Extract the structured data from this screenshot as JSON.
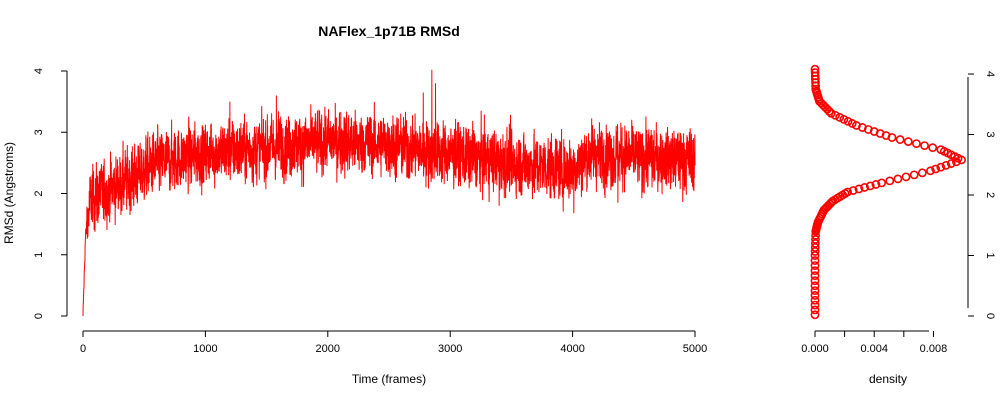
{
  "chart_data": [
    {
      "type": "line",
      "title": "NAFlex_1p71B RMSd",
      "xlabel": "Time (frames)",
      "ylabel": "RMSd (Angstroms)",
      "xlim": [
        0,
        5000
      ],
      "ylim": [
        0,
        4
      ],
      "x_ticks": [
        "0",
        "1000",
        "2000",
        "3000",
        "4000",
        "5000"
      ],
      "y_ticks": [
        "0",
        "1",
        "2",
        "3",
        "4"
      ],
      "series": [
        {
          "color": "#ff0000",
          "n_frames": 5000,
          "noise_amplitude": 0.55,
          "trend": [
            {
              "x": 0,
              "y": 0.0
            },
            {
              "x": 20,
              "y": 1.3
            },
            {
              "x": 60,
              "y": 1.9
            },
            {
              "x": 200,
              "y": 2.05
            },
            {
              "x": 400,
              "y": 2.25
            },
            {
              "x": 600,
              "y": 2.5
            },
            {
              "x": 1000,
              "y": 2.65
            },
            {
              "x": 1500,
              "y": 2.75
            },
            {
              "x": 2000,
              "y": 2.85
            },
            {
              "x": 2500,
              "y": 2.8
            },
            {
              "x": 3000,
              "y": 2.65
            },
            {
              "x": 3500,
              "y": 2.5
            },
            {
              "x": 4000,
              "y": 2.4
            },
            {
              "x": 4150,
              "y": 2.65
            },
            {
              "x": 4500,
              "y": 2.6
            },
            {
              "x": 5000,
              "y": 2.55
            }
          ],
          "extremes": [
            {
              "x": 2850,
              "y": 4.02
            },
            {
              "x": 2780,
              "y": 3.65
            },
            {
              "x": 2880,
              "y": 3.8
            },
            {
              "x": 1580,
              "y": 3.6
            },
            {
              "x": 1200,
              "y": 3.5
            },
            {
              "x": 4010,
              "y": 1.68
            },
            {
              "x": 3400,
              "y": 1.8
            },
            {
              "x": 4370,
              "y": 1.85
            }
          ]
        }
      ]
    },
    {
      "type": "scatter",
      "xlabel": "density",
      "ylabel": "",
      "xlim": [
        0,
        0.0102
      ],
      "ylim": [
        0,
        4.05
      ],
      "x_ticks": [
        "0.000",
        "0.004",
        "0.008"
      ],
      "y_ticks": [
        "0",
        "1",
        "2",
        "3",
        "4"
      ],
      "y_axis_side": "right",
      "series": [
        {
          "color": "#ff0000",
          "points": [
            {
              "x": 0.0,
              "y": 0.02
            },
            {
              "x": 0.0,
              "y": 0.5
            },
            {
              "x": 0.0,
              "y": 1.0
            },
            {
              "x": 5e-05,
              "y": 1.4
            },
            {
              "x": 0.0002,
              "y": 1.55
            },
            {
              "x": 0.0006,
              "y": 1.75
            },
            {
              "x": 0.0012,
              "y": 1.9
            },
            {
              "x": 0.0022,
              "y": 2.05
            },
            {
              "x": 0.0045,
              "y": 2.2
            },
            {
              "x": 0.0078,
              "y": 2.4
            },
            {
              "x": 0.0099,
              "y": 2.58
            },
            {
              "x": 0.0085,
              "y": 2.75
            },
            {
              "x": 0.0052,
              "y": 2.95
            },
            {
              "x": 0.0028,
              "y": 3.15
            },
            {
              "x": 0.0011,
              "y": 3.35
            },
            {
              "x": 0.0003,
              "y": 3.55
            },
            {
              "x": 5e-05,
              "y": 3.75
            },
            {
              "x": 0.0,
              "y": 4.08
            }
          ]
        }
      ]
    }
  ]
}
